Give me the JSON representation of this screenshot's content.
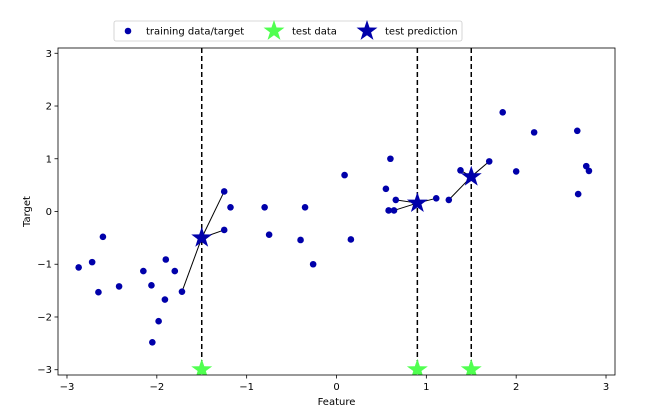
{
  "chart_data": {
    "type": "scatter",
    "xlabel": "Feature",
    "ylabel": "Target",
    "xlim": [
      -3.1,
      3.1
    ],
    "ylim": [
      -3.1,
      3.1
    ],
    "xticks": [
      -3,
      -2,
      -1,
      0,
      1,
      2,
      3
    ],
    "yticks": [
      -3,
      -2,
      -1,
      0,
      1,
      2,
      3
    ],
    "grid": false,
    "legend": {
      "placement": "top-center",
      "entries": [
        {
          "label": "training data/target",
          "marker": "circle",
          "color": "#0000aa"
        },
        {
          "label": "test data",
          "marker": "star",
          "color": "#50ff50"
        },
        {
          "label": "test prediction",
          "marker": "star",
          "color": "#0000aa"
        }
      ]
    },
    "series": [
      {
        "name": "training data/target",
        "marker": "circle",
        "color": "#0000aa",
        "points": [
          [
            -2.87,
            -1.06
          ],
          [
            -2.72,
            -0.96
          ],
          [
            -2.65,
            -1.53
          ],
          [
            -2.6,
            -0.48
          ],
          [
            -2.42,
            -1.42
          ],
          [
            -2.15,
            -1.13
          ],
          [
            -2.06,
            -1.4
          ],
          [
            -2.05,
            -2.48
          ],
          [
            -1.98,
            -2.08
          ],
          [
            -1.91,
            -1.67
          ],
          [
            -1.9,
            -0.91
          ],
          [
            -1.8,
            -1.13
          ],
          [
            -1.72,
            -1.52
          ],
          [
            -1.25,
            0.38
          ],
          [
            -1.25,
            -0.35
          ],
          [
            -1.18,
            0.08
          ],
          [
            -0.8,
            0.08
          ],
          [
            -0.75,
            -0.44
          ],
          [
            -0.4,
            -0.54
          ],
          [
            -0.35,
            0.08
          ],
          [
            -0.26,
            -1.0
          ],
          [
            0.09,
            0.69
          ],
          [
            0.16,
            -0.53
          ],
          [
            0.55,
            0.43
          ],
          [
            0.58,
            0.02
          ],
          [
            0.6,
            1.0
          ],
          [
            0.64,
            0.02
          ],
          [
            0.66,
            0.22
          ],
          [
            1.11,
            0.25
          ],
          [
            1.25,
            0.22
          ],
          [
            1.38,
            0.78
          ],
          [
            1.7,
            0.95
          ],
          [
            1.85,
            1.88
          ],
          [
            2.0,
            0.76
          ],
          [
            2.2,
            1.5
          ],
          [
            2.68,
            1.53
          ],
          [
            2.69,
            0.33
          ],
          [
            2.78,
            0.86
          ],
          [
            2.81,
            0.77
          ]
        ]
      },
      {
        "name": "test data",
        "marker": "star",
        "color": "#50ff50",
        "points": [
          [
            -1.5,
            -3.0
          ],
          [
            0.9,
            -3.0
          ],
          [
            1.5,
            -3.0
          ]
        ]
      },
      {
        "name": "test prediction",
        "marker": "star",
        "color": "#0000aa",
        "points": [
          [
            -1.5,
            -0.5
          ],
          [
            0.9,
            0.16
          ],
          [
            1.5,
            0.66
          ]
        ]
      }
    ],
    "vertical_lines": [
      -1.5,
      0.9,
      1.5
    ],
    "neighbor_links": [
      {
        "from": [
          -1.5,
          -0.5
        ],
        "to": [
          -1.72,
          -1.52
        ]
      },
      {
        "from": [
          -1.5,
          -0.5
        ],
        "to": [
          -1.25,
          0.38
        ]
      },
      {
        "from": [
          -1.5,
          -0.5
        ],
        "to": [
          -1.25,
          -0.35
        ]
      },
      {
        "from": [
          0.9,
          0.16
        ],
        "to": [
          0.66,
          0.22
        ]
      },
      {
        "from": [
          0.9,
          0.16
        ],
        "to": [
          0.64,
          0.02
        ]
      },
      {
        "from": [
          0.9,
          0.16
        ],
        "to": [
          1.11,
          0.25
        ]
      },
      {
        "from": [
          1.5,
          0.66
        ],
        "to": [
          1.38,
          0.78
        ]
      },
      {
        "from": [
          1.5,
          0.66
        ],
        "to": [
          1.7,
          0.95
        ]
      },
      {
        "from": [
          1.5,
          0.66
        ],
        "to": [
          1.25,
          0.22
        ]
      }
    ]
  }
}
